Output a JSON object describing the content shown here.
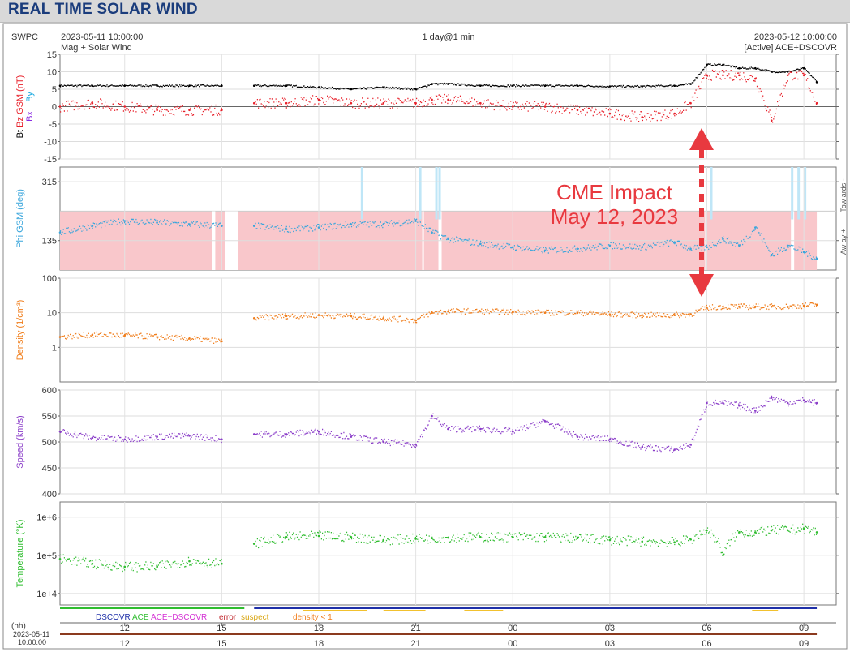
{
  "page": {
    "title": "REAL TIME SOLAR WIND"
  },
  "header": {
    "source": "SWPC",
    "start_time": "2023-05-11 10:00:00",
    "end_time": "2023-05-12 10:00:00",
    "subtitle_left": "Mag + Solar Wind",
    "span": "1 day@1 min",
    "subtitle_right": "[Active] ACE+DSCOVR"
  },
  "annotation": {
    "line1": "CME Impact",
    "line2": "May 12, 2023"
  },
  "legend": {
    "dscovr": "DSCOVR",
    "ace": "ACE",
    "ace_dscovr": "ACE+DSCOVR",
    "error": "error",
    "suspect": "suspect",
    "density": "density < 1"
  },
  "time_axis": {
    "hh_label": "(hh)",
    "date_label": "2023-05-11",
    "time_label": "10:00:00",
    "ticks": [
      "12",
      "15",
      "18",
      "21",
      "00",
      "03",
      "06",
      "09"
    ]
  },
  "colors": {
    "bt": "#000000",
    "bz": "#e8202a",
    "by": "#19a9e1",
    "bx": "#8a2be2",
    "phi": "#3aa6dc",
    "phi_band": "#f9c7cb",
    "density": "#f07e1c",
    "speed": "#8b3ec9",
    "temperature": "#2fbd2f",
    "annotation": "#e8393f"
  },
  "chart_data": [
    {
      "type": "line",
      "panel": "magnetic_field",
      "ylabel": "Bt Bz GSM (nT) Bx By",
      "ylim": [
        -15,
        15
      ],
      "yticks": [
        "15",
        "10",
        "5",
        "0",
        "-5",
        "-10",
        "-15"
      ],
      "x_hours": [
        10,
        11,
        12,
        13,
        14,
        15,
        15.5,
        16,
        17,
        18,
        19,
        20,
        21,
        21.5,
        22,
        23,
        24,
        25,
        26,
        27,
        28,
        29,
        29.5,
        30,
        30.5,
        31,
        31.5,
        32,
        32.5,
        33,
        33.4
      ],
      "series": [
        {
          "name": "Bt",
          "values": [
            6,
            6,
            6,
            6,
            6,
            6,
            null,
            6,
            6,
            5.5,
            5,
            5.5,
            5,
            6.5,
            6.5,
            6,
            6,
            6,
            6,
            5.8,
            5.8,
            6,
            6.5,
            12,
            12,
            11,
            11,
            10,
            10,
            11,
            7
          ]
        },
        {
          "name": "Bz",
          "values": [
            0,
            1,
            0,
            -1,
            -1,
            -1,
            null,
            1,
            1,
            2,
            1,
            1,
            1,
            2,
            2,
            1,
            0,
            0,
            -1,
            -2,
            -3,
            -2,
            1,
            9,
            9,
            9,
            8,
            -4,
            9,
            9,
            1
          ]
        }
      ]
    },
    {
      "type": "line",
      "panel": "phi_gsm",
      "ylabel": "Phi GSM (deg)",
      "right_labels": [
        "Tow ards -",
        "Aw ay +"
      ],
      "ylim": [
        45,
        360
      ],
      "yticks": [
        "315",
        "135"
      ],
      "x_hours": [
        10,
        11,
        12,
        13,
        14,
        15,
        15.5,
        16,
        17,
        18,
        19,
        20,
        21,
        21.5,
        22,
        23,
        24,
        25,
        26,
        27,
        28,
        29,
        29.5,
        30,
        30.5,
        31,
        31.5,
        32,
        32.5,
        33,
        33.4
      ],
      "values": [
        160,
        180,
        195,
        190,
        185,
        180,
        null,
        180,
        170,
        175,
        185,
        185,
        195,
        160,
        140,
        125,
        115,
        105,
        110,
        120,
        115,
        130,
        110,
        115,
        140,
        120,
        175,
        90,
        120,
        100,
        80
      ]
    },
    {
      "type": "line",
      "panel": "density",
      "ylabel": "Density (1/cm³)",
      "yscale": "log",
      "ylim": [
        0.1,
        100
      ],
      "yticks": [
        "100",
        "10",
        "1"
      ],
      "x_hours": [
        10,
        11,
        12,
        13,
        14,
        15,
        15.5,
        16,
        17,
        18,
        19,
        20,
        21,
        21.5,
        22,
        23,
        24,
        25,
        26,
        27,
        28,
        29,
        29.5,
        30,
        30.5,
        31,
        31.5,
        32,
        32.5,
        33,
        33.4
      ],
      "values": [
        2,
        2.3,
        2.2,
        2,
        1.8,
        1.5,
        null,
        7,
        8,
        8.5,
        8,
        7,
        6,
        10,
        11,
        11,
        10.5,
        10,
        10,
        9,
        8.5,
        8.5,
        9,
        14,
        15,
        15,
        15,
        15,
        15,
        16,
        17
      ]
    },
    {
      "type": "line",
      "panel": "speed",
      "ylabel": "Speed (km/s)",
      "ylim": [
        400,
        600
      ],
      "yticks": [
        "600",
        "550",
        "500",
        "450",
        "400"
      ],
      "x_hours": [
        10,
        11,
        12,
        13,
        14,
        15,
        15.5,
        16,
        17,
        18,
        19,
        20,
        21,
        21.5,
        22,
        23,
        24,
        25,
        26,
        27,
        28,
        29,
        29.5,
        30,
        30.5,
        31,
        31.5,
        32,
        32.5,
        33,
        33.4
      ],
      "values": [
        520,
        508,
        505,
        510,
        512,
        505,
        null,
        515,
        515,
        520,
        510,
        500,
        495,
        550,
        525,
        525,
        520,
        540,
        510,
        505,
        490,
        485,
        495,
        575,
        575,
        570,
        560,
        585,
        575,
        580,
        575
      ]
    },
    {
      "type": "line",
      "panel": "temperature",
      "ylabel": "Temperature (°K)",
      "yscale": "log",
      "ylim": [
        5000,
        2500000
      ],
      "yticks": [
        "1e+6",
        "1e+5",
        "1e+4"
      ],
      "x_hours": [
        10,
        11,
        12,
        13,
        14,
        15,
        15.5,
        16,
        17,
        18,
        19,
        20,
        21,
        21.5,
        22,
        23,
        24,
        25,
        26,
        27,
        28,
        29,
        29.5,
        30,
        30.5,
        31,
        31.5,
        32,
        32.5,
        33,
        33.4
      ],
      "values": [
        80000,
        60000,
        50000,
        50000,
        70000,
        60000,
        null,
        200000,
        300000,
        320000,
        300000,
        250000,
        270000,
        280000,
        290000,
        300000,
        300000,
        300000,
        280000,
        250000,
        230000,
        220000,
        260000,
        450000,
        100000,
        400000,
        400000,
        450000,
        450000,
        500000,
        400000
      ]
    }
  ]
}
